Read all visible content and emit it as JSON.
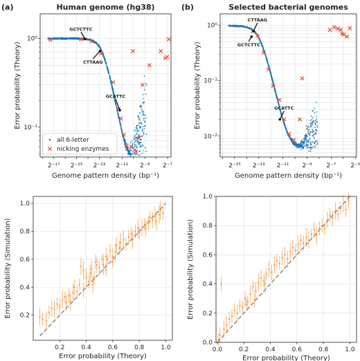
{
  "panel_labels": [
    "(a)",
    "(b)"
  ],
  "colors": {
    "scatter": "#1f77b4",
    "nick": "#e8543a",
    "sim": "#f28e2b",
    "diag": "#7f7f7f",
    "grid": "#dddddd"
  },
  "chart_data": [
    {
      "id": "a_top",
      "type": "scatter",
      "title": "Human genome (hg38)",
      "xlabel": "Genome pattern density (bp⁻¹)",
      "ylabel": "Error probability (Theory)",
      "xscale": "log2",
      "yscale": "log10",
      "xlim": [
        -18.2,
        -6.7
      ],
      "ylim": [
        0.046,
        1.9
      ],
      "xtick_labels": [
        "2⁻¹⁷",
        "2⁻¹⁵",
        "2⁻¹³",
        "2⁻¹¹",
        "2⁻⁹",
        "2⁻⁷"
      ],
      "ytick_labels": [
        "10⁰",
        "10⁻¹"
      ],
      "grid": true,
      "legend": {
        "position": "lower-left",
        "entries": [
          "all 6-letter",
          "nicking enzymes"
        ]
      },
      "curve": {
        "name": "all 6-letter",
        "log2x": [
          -17.5,
          -16,
          -15,
          -14.3,
          -13.8,
          -13.3,
          -13,
          -12.7,
          -12.4,
          -12.1,
          -11.8,
          -11.5,
          -11.2,
          -11,
          -10.8,
          -10.6,
          -10.4,
          -10.25
        ],
        "y": [
          1.0,
          1.0,
          1.0,
          0.99,
          0.97,
          0.9,
          0.82,
          0.68,
          0.52,
          0.38,
          0.26,
          0.17,
          0.115,
          0.088,
          0.07,
          0.058,
          0.052,
          0.05
        ]
      },
      "nicking_enzymes": [
        {
          "log2x": -17.3,
          "y": 0.97
        },
        {
          "log2x": -14.6,
          "y": 0.98
        },
        {
          "log2x": -13.7,
          "y": 0.93
        },
        {
          "log2x": -12.85,
          "y": 0.68
        },
        {
          "log2x": -11.8,
          "y": 0.32
        },
        {
          "log2x": -11.3,
          "y": 0.16
        },
        {
          "log2x": -11.1,
          "y": 0.125
        },
        {
          "log2x": -10.85,
          "y": 0.082
        },
        {
          "log2x": -10.6,
          "y": 0.062
        },
        {
          "log2x": -10.2,
          "y": 0.06
        },
        {
          "log2x": -9.8,
          "y": 0.053
        },
        {
          "log2x": -9.5,
          "y": 0.075
        },
        {
          "log2x": -9.2,
          "y": 0.3
        },
        {
          "log2x": -8.6,
          "y": 0.5
        },
        {
          "log2x": -7.6,
          "y": 0.72
        },
        {
          "log2x": -7.2,
          "y": 0.6
        },
        {
          "log2x": -7.05,
          "y": 0.62
        },
        {
          "log2x": -6.9,
          "y": 0.98
        },
        {
          "log2x": -10.05,
          "y": 0.72
        }
      ],
      "annotations": [
        {
          "text": "GCTCTTC",
          "log2x": -14.25,
          "y": 0.99
        },
        {
          "text": "CTTAAG",
          "log2x": -12.95,
          "y": 0.72
        },
        {
          "text": "GCATTC",
          "log2x": -11.2,
          "y": 0.155
        }
      ]
    },
    {
      "id": "b_top",
      "type": "scatter",
      "title": "Selected bacterial genomes",
      "xlabel": "Genome pattern density (bp⁻¹)",
      "ylabel": "Error probability (Theory)",
      "xscale": "log2",
      "yscale": "log10",
      "xlim": [
        -16.2,
        -4.9
      ],
      "ylim": [
        0.0042,
        1.6
      ],
      "xtick_labels": [
        "2⁻¹⁵",
        "2⁻¹³",
        "2⁻¹¹",
        "2⁻⁹",
        "2⁻⁷",
        "2⁻⁵"
      ],
      "ytick_labels": [
        "10⁰",
        "10⁻¹",
        "10⁻²"
      ],
      "grid": true,
      "curve": {
        "name": "all 6-letter",
        "log2x": [
          -15.5,
          -14.5,
          -14,
          -13.6,
          -13.3,
          -13,
          -12.7,
          -12.4,
          -12.1,
          -11.8,
          -11.5,
          -11.2,
          -10.9,
          -10.6,
          -10.3,
          -10,
          -9.7,
          -9.5
        ],
        "y": [
          0.98,
          0.96,
          0.92,
          0.85,
          0.75,
          0.6,
          0.42,
          0.27,
          0.16,
          0.09,
          0.05,
          0.028,
          0.017,
          0.011,
          0.0085,
          0.0072,
          0.0066,
          0.0065
        ]
      },
      "nicking_enzymes": [
        {
          "log2x": -13.5,
          "y": 0.78
        },
        {
          "log2x": -13.1,
          "y": 0.64
        },
        {
          "log2x": -12.6,
          "y": 0.32
        },
        {
          "log2x": -12.2,
          "y": 0.16
        },
        {
          "log2x": -11.8,
          "y": 0.08
        },
        {
          "log2x": -11.3,
          "y": 0.045
        },
        {
          "log2x": -10.9,
          "y": 0.02
        },
        {
          "log2x": -10.5,
          "y": 0.011
        },
        {
          "log2x": -10.1,
          "y": 0.0085
        },
        {
          "log2x": -9.6,
          "y": 0.02
        },
        {
          "log2x": -9.4,
          "y": 0.11
        },
        {
          "log2x": -7.1,
          "y": 0.82
        },
        {
          "log2x": -6.75,
          "y": 0.92
        },
        {
          "log2x": -6.45,
          "y": 0.87
        },
        {
          "log2x": -6.2,
          "y": 0.82
        },
        {
          "log2x": -6.1,
          "y": 0.7
        },
        {
          "log2x": -5.95,
          "y": 0.68
        },
        {
          "log2x": -5.7,
          "y": 0.62
        },
        {
          "log2x": -5.45,
          "y": 0.88
        }
      ],
      "annotations": [
        {
          "text": "CTTAAG",
          "log2x": -13.45,
          "y": 0.78
        },
        {
          "text": "GCTCTTC",
          "log2x": -13.6,
          "y": 0.62
        },
        {
          "text": "GCATTC",
          "log2x": -11.25,
          "y": 0.02
        }
      ]
    },
    {
      "id": "a_bottom",
      "type": "scatter",
      "xlabel": "Error probability (Theory)",
      "ylabel": "Error probability (Simulation)",
      "xlim": [
        0,
        1.05
      ],
      "ylim": [
        0.02,
        1.05
      ],
      "xticks": [
        0.2,
        0.4,
        0.6,
        0.8,
        1.0
      ],
      "yticks": [
        0.2,
        0.4,
        0.6,
        0.8,
        1.0
      ],
      "grid": true,
      "diagonal": true,
      "points": [
        [
          0.05,
          0.19
        ],
        [
          0.07,
          0.17
        ],
        [
          0.1,
          0.16
        ],
        [
          0.12,
          0.22
        ],
        [
          0.14,
          0.25
        ],
        [
          0.16,
          0.24
        ],
        [
          0.18,
          0.28
        ],
        [
          0.2,
          0.26
        ],
        [
          0.22,
          0.31
        ],
        [
          0.24,
          0.33
        ],
        [
          0.25,
          0.29
        ],
        [
          0.27,
          0.34
        ],
        [
          0.28,
          0.3
        ],
        [
          0.3,
          0.36
        ],
        [
          0.31,
          0.4
        ],
        [
          0.33,
          0.37
        ],
        [
          0.35,
          0.42
        ],
        [
          0.36,
          0.55
        ],
        [
          0.38,
          0.52
        ],
        [
          0.4,
          0.47
        ],
        [
          0.42,
          0.44
        ],
        [
          0.43,
          0.5
        ],
        [
          0.44,
          0.53
        ],
        [
          0.46,
          0.47
        ],
        [
          0.47,
          0.58
        ],
        [
          0.48,
          0.56
        ],
        [
          0.5,
          0.54
        ],
        [
          0.52,
          0.6
        ],
        [
          0.53,
          0.56
        ],
        [
          0.55,
          0.62
        ],
        [
          0.56,
          0.6
        ],
        [
          0.58,
          0.66
        ],
        [
          0.6,
          0.62
        ],
        [
          0.62,
          0.65
        ],
        [
          0.63,
          0.7
        ],
        [
          0.65,
          0.68
        ],
        [
          0.66,
          0.72
        ],
        [
          0.68,
          0.74
        ],
        [
          0.7,
          0.71
        ],
        [
          0.72,
          0.76
        ],
        [
          0.74,
          0.78
        ],
        [
          0.75,
          0.74
        ],
        [
          0.77,
          0.8
        ],
        [
          0.79,
          0.82
        ],
        [
          0.8,
          0.79
        ],
        [
          0.82,
          0.83
        ],
        [
          0.84,
          0.85
        ],
        [
          0.85,
          0.82
        ],
        [
          0.87,
          0.86
        ],
        [
          0.88,
          0.9
        ],
        [
          0.9,
          0.88
        ],
        [
          0.92,
          0.91
        ],
        [
          0.93,
          0.87
        ],
        [
          0.95,
          0.92
        ],
        [
          0.96,
          0.95
        ],
        [
          0.98,
          0.93
        ],
        [
          0.45,
          0.42
        ],
        [
          0.55,
          0.52
        ],
        [
          0.38,
          0.38
        ],
        [
          0.6,
          0.58
        ]
      ]
    },
    {
      "id": "b_bottom",
      "type": "scatter",
      "xlabel": "Error probability (Theory)",
      "ylabel": "Error probability (Simulation)",
      "xlim": [
        -0.01,
        1.05
      ],
      "ylim": [
        0,
        1.0
      ],
      "xticks": [
        0.0,
        0.2,
        0.4,
        0.6,
        0.8,
        1.0
      ],
      "yticks": [
        0.0,
        0.2,
        0.4,
        0.6,
        0.8,
        1.0
      ],
      "grid": true,
      "diagonal": true,
      "points": [
        [
          0.01,
          0.02
        ],
        [
          0.02,
          0.05
        ],
        [
          0.03,
          0.4
        ],
        [
          0.05,
          0.09
        ],
        [
          0.07,
          0.12
        ],
        [
          0.09,
          0.16
        ],
        [
          0.11,
          0.18
        ],
        [
          0.13,
          0.22
        ],
        [
          0.15,
          0.2
        ],
        [
          0.17,
          0.25
        ],
        [
          0.19,
          0.24
        ],
        [
          0.21,
          0.3
        ],
        [
          0.23,
          0.28
        ],
        [
          0.25,
          0.33
        ],
        [
          0.27,
          0.38
        ],
        [
          0.29,
          0.35
        ],
        [
          0.31,
          0.41
        ],
        [
          0.33,
          0.44
        ],
        [
          0.35,
          0.42
        ],
        [
          0.37,
          0.47
        ],
        [
          0.39,
          0.5
        ],
        [
          0.41,
          0.48
        ],
        [
          0.43,
          0.53
        ],
        [
          0.45,
          0.56
        ],
        [
          0.47,
          0.54
        ],
        [
          0.49,
          0.58
        ],
        [
          0.51,
          0.6
        ],
        [
          0.53,
          0.57
        ],
        [
          0.55,
          0.62
        ],
        [
          0.57,
          0.65
        ],
        [
          0.59,
          0.63
        ],
        [
          0.61,
          0.67
        ],
        [
          0.63,
          0.7
        ],
        [
          0.65,
          0.68
        ],
        [
          0.67,
          0.72
        ],
        [
          0.69,
          0.7
        ],
        [
          0.71,
          0.74
        ],
        [
          0.73,
          0.77
        ],
        [
          0.75,
          0.73
        ],
        [
          0.77,
          0.78
        ],
        [
          0.79,
          0.8
        ],
        [
          0.81,
          0.78
        ],
        [
          0.83,
          0.84
        ],
        [
          0.85,
          0.87
        ],
        [
          0.87,
          0.85
        ],
        [
          0.89,
          0.9
        ],
        [
          0.91,
          0.88
        ],
        [
          0.93,
          0.92
        ],
        [
          0.95,
          0.95
        ],
        [
          0.97,
          0.91
        ],
        [
          0.99,
          0.97
        ],
        [
          0.22,
          0.26
        ],
        [
          0.28,
          0.29
        ],
        [
          0.36,
          0.4
        ]
      ]
    }
  ]
}
